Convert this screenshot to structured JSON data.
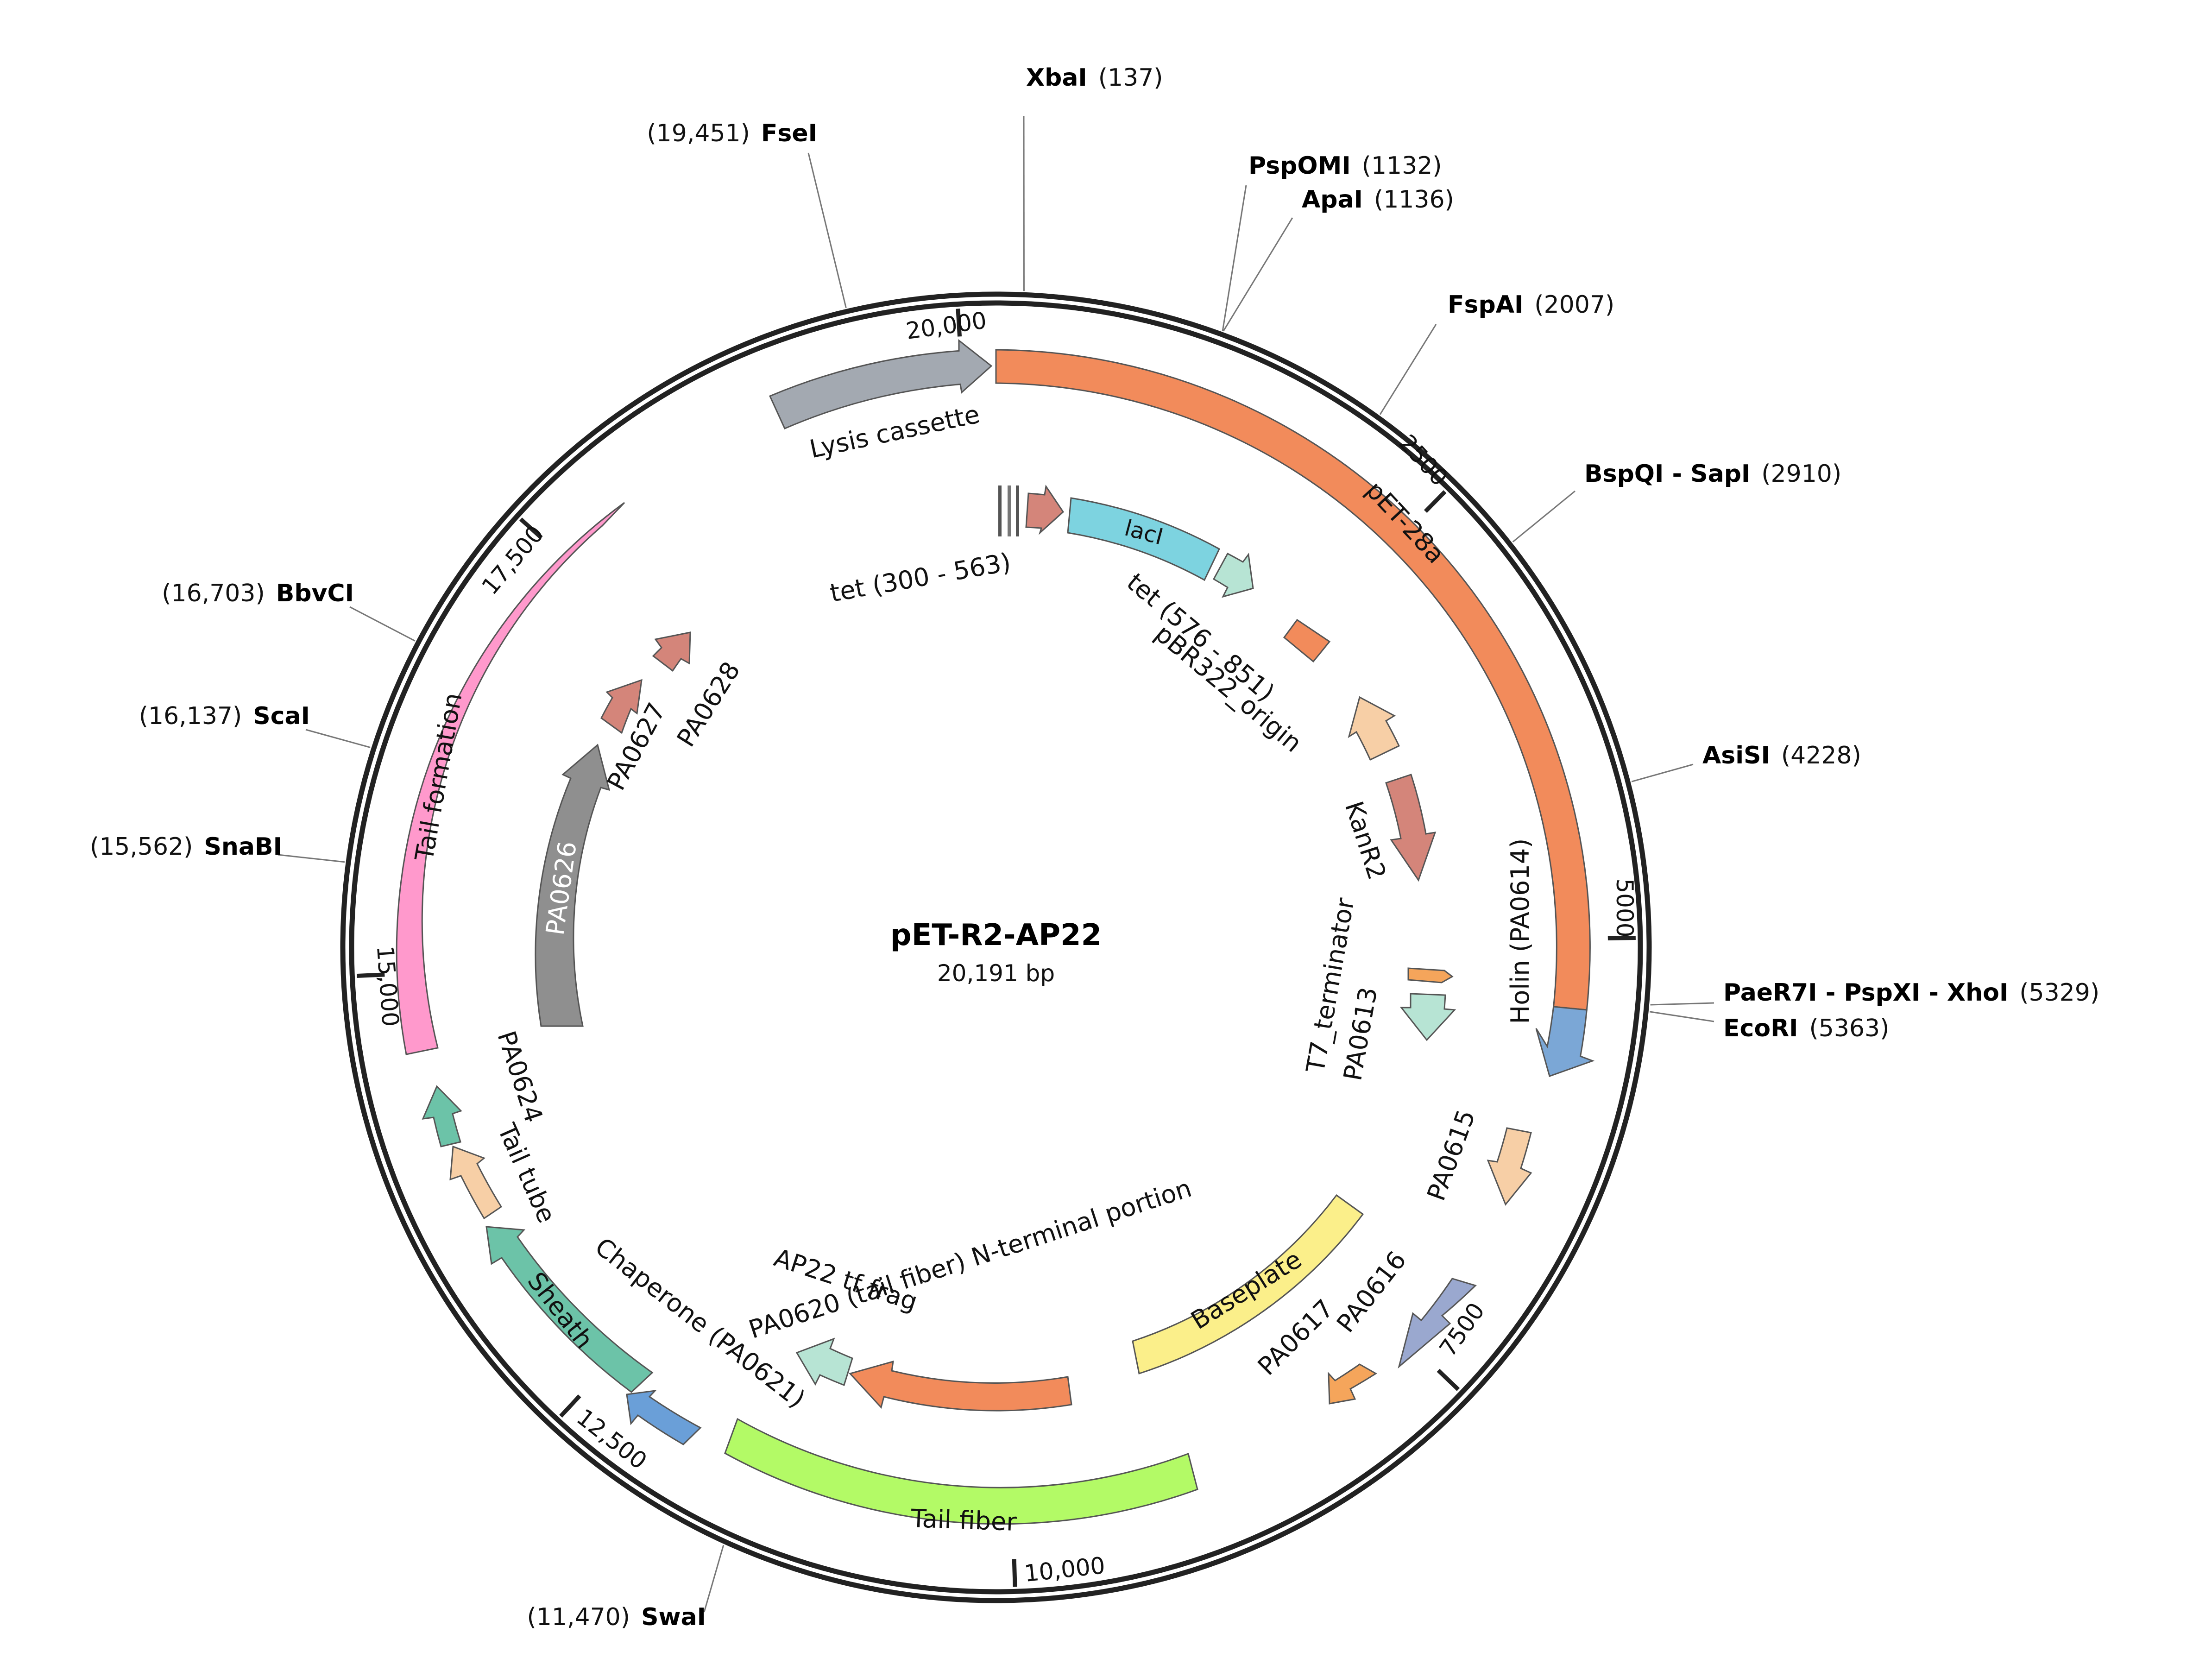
{
  "plasmid": {
    "name": "pET-R2-AP22",
    "length_label": "20,191 bp",
    "length": 20191
  },
  "ticks": [
    {
      "label": "20,000",
      "pos": 20000
    },
    {
      "label": "2500",
      "pos": 2500
    },
    {
      "label": "5000",
      "pos": 5000
    },
    {
      "label": "7500",
      "pos": 7500
    },
    {
      "label": "10,000",
      "pos": 10000
    },
    {
      "label": "12,500",
      "pos": 12500
    },
    {
      "label": "15,000",
      "pos": 15000
    },
    {
      "label": "17,500",
      "pos": 17500
    }
  ],
  "sites": [
    {
      "name": "XbaI",
      "pos_label": "(137)",
      "pos": 137
    },
    {
      "name": "PspOMI",
      "pos_label": "(1132)",
      "pos": 1132
    },
    {
      "name": "ApaI",
      "pos_label": "(1136)",
      "pos": 1136
    },
    {
      "name": "FspAI",
      "pos_label": "(2007)",
      "pos": 2007
    },
    {
      "name": "BspQI - SapI",
      "pos_label": "(2910)",
      "pos": 2910
    },
    {
      "name": "AsiSI",
      "pos_label": "(4228)",
      "pos": 4228
    },
    {
      "name": "PaeR7I - PspXI - XhoI",
      "pos_label": "(5329)",
      "pos": 5329
    },
    {
      "name": "EcoRI",
      "pos_label": "(5363)",
      "pos": 5363
    },
    {
      "name": "FseI",
      "pos_label": "(19,451)",
      "pos": 19451
    },
    {
      "name": "BbvCI",
      "pos_label": "(16,703)",
      "pos": 16703
    },
    {
      "name": "ScaI",
      "pos_label": "(16,137)",
      "pos": 16137
    },
    {
      "name": "SnaBI",
      "pos_label": "(15,562)",
      "pos": 15562
    },
    {
      "name": "SwaI",
      "pos_label": "(11,470)",
      "pos": 11470
    }
  ],
  "features": [
    {
      "label": "pET-28a",
      "color": "#f28b5b"
    },
    {
      "label": "Holin (PA0614)",
      "color": "#7ba7d6"
    },
    {
      "label": "Lysis cassette",
      "color": "#a3a9b1"
    },
    {
      "label": "lacI",
      "color": "#7dd3e0"
    },
    {
      "label": "tet (300 - 563)",
      "color": "#d4857a"
    },
    {
      "label": "tet (576 - 851)",
      "color": "#b7e4d4"
    },
    {
      "label": "pBR322_origin",
      "color": "#f28b5b"
    },
    {
      "label": "KanR2",
      "color": "#d4857a"
    },
    {
      "label": "T7_terminator",
      "color": "#f5a55b"
    },
    {
      "label": "PA0613",
      "color": "#b7e4d4"
    },
    {
      "label": "PA0615",
      "color": "#f7cfa6"
    },
    {
      "label": "PA0616",
      "color": "#9aa8cf"
    },
    {
      "label": "PA0617",
      "color": "#f5a55b"
    },
    {
      "label": "Baseplate",
      "color": "#fbef8a"
    },
    {
      "label": "Tail fiber",
      "color": "#b3fa66"
    },
    {
      "label": "PA0620 (tail fiber) N-terminal portion",
      "color": "#f28b5b"
    },
    {
      "label": "AP22 tf frag",
      "color": "#b7e4d4"
    },
    {
      "label": "Chaperone (PA0621)",
      "color": "#6a9fd8"
    },
    {
      "label": "Sheath",
      "color": "#6cc3a8"
    },
    {
      "label": "Tail tube",
      "color": "#f7cfa6"
    },
    {
      "label": "PA0624",
      "color": "#6cc3a8"
    },
    {
      "label": "PA0626",
      "color": "#8f8f8f"
    },
    {
      "label": "PA0627",
      "color": "#d4857a"
    },
    {
      "label": "PA0628",
      "color": "#d4857a"
    },
    {
      "label": "Tail formation",
      "color": "#ff99cc"
    }
  ]
}
